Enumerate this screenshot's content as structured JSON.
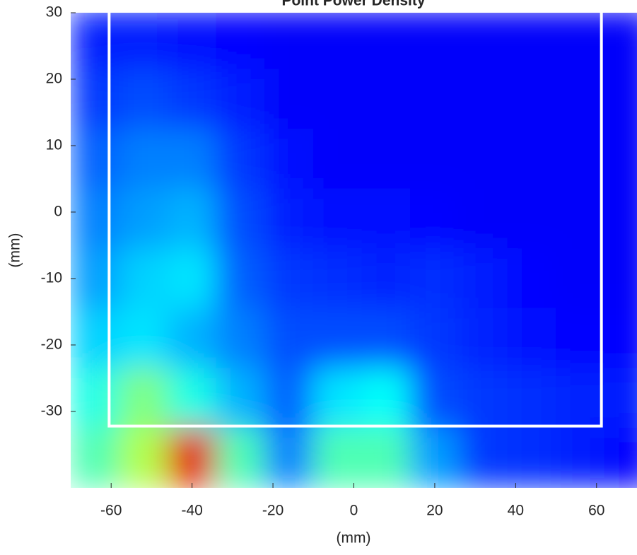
{
  "chart_data": {
    "type": "heatmap",
    "title": "Point Power Density",
    "x_label": "(mm)",
    "y_label": "(mm)",
    "xlim": [
      -70,
      70
    ],
    "ylim": [
      -41.5,
      30
    ],
    "xticks": [
      -60,
      -40,
      -20,
      0,
      20,
      40,
      60
    ],
    "yticks": [
      -30,
      -20,
      -10,
      0,
      10,
      20,
      30
    ],
    "x": [
      -64,
      -52,
      -40,
      -28,
      -16,
      -4,
      8,
      20,
      32,
      44,
      56,
      68
    ],
    "y": [
      26,
      17,
      8,
      -1,
      -10,
      -19,
      -28,
      -37
    ],
    "z": [
      [
        0.15,
        0.15,
        0.14,
        0.13,
        0.12,
        0.12,
        0.12,
        0.12,
        0.12,
        0.12,
        0.12,
        0.12
      ],
      [
        0.18,
        0.2,
        0.18,
        0.15,
        0.12,
        0.12,
        0.12,
        0.12,
        0.12,
        0.12,
        0.12,
        0.12
      ],
      [
        0.22,
        0.25,
        0.25,
        0.18,
        0.14,
        0.12,
        0.12,
        0.12,
        0.12,
        0.12,
        0.12,
        0.12
      ],
      [
        0.25,
        0.28,
        0.3,
        0.2,
        0.15,
        0.14,
        0.14,
        0.13,
        0.12,
        0.12,
        0.12,
        0.12
      ],
      [
        0.28,
        0.33,
        0.35,
        0.22,
        0.18,
        0.17,
        0.16,
        0.17,
        0.15,
        0.13,
        0.12,
        0.12
      ],
      [
        0.33,
        0.35,
        0.3,
        0.25,
        0.2,
        0.2,
        0.2,
        0.18,
        0.16,
        0.14,
        0.13,
        0.13
      ],
      [
        0.4,
        0.5,
        0.4,
        0.3,
        0.22,
        0.35,
        0.38,
        0.2,
        0.18,
        0.17,
        0.16,
        0.15
      ],
      [
        0.45,
        0.55,
        0.9,
        0.45,
        0.25,
        0.45,
        0.45,
        0.28,
        0.18,
        0.17,
        0.15,
        0.13
      ]
    ],
    "region": {
      "x": [
        -60.5,
        61.2
      ],
      "y": [
        -32.2,
        30
      ],
      "color": "#ffffff"
    }
  }
}
